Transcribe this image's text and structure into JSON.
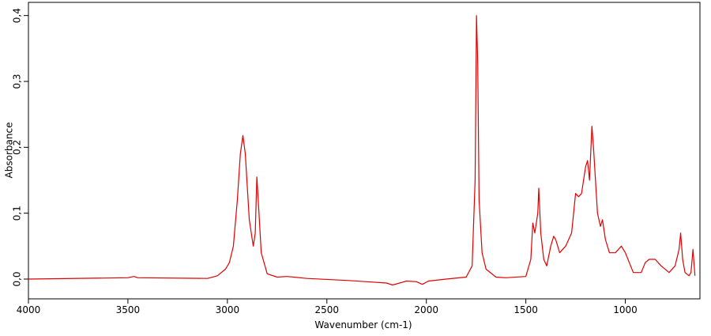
{
  "chart_data": {
    "type": "line",
    "x_label": "Wavenumber (cm-1)",
    "y_label": "Absorbance",
    "x": [
      4000,
      3500,
      3470,
      3450,
      3100,
      3050,
      3010,
      2990,
      2970,
      2950,
      2935,
      2922,
      2910,
      2890,
      2870,
      2860,
      2852,
      2845,
      2830,
      2800,
      2750,
      2700,
      2600,
      2400,
      2300,
      2200,
      2170,
      2100,
      2050,
      2020,
      1990,
      1900,
      1800,
      1770,
      1755,
      1748,
      1742,
      1735,
      1720,
      1700,
      1650,
      1600,
      1500,
      1475,
      1465,
      1455,
      1440,
      1435,
      1425,
      1410,
      1395,
      1375,
      1360,
      1350,
      1330,
      1300,
      1270,
      1250,
      1235,
      1220,
      1200,
      1190,
      1180,
      1168,
      1160,
      1140,
      1125,
      1115,
      1100,
      1080,
      1050,
      1020,
      1000,
      980,
      960,
      920,
      900,
      880,
      850,
      820,
      780,
      750,
      730,
      722,
      712,
      700,
      680,
      670,
      660,
      650
    ],
    "series": [
      {
        "color": "#e00000",
        "values": [
          0.0,
          0.002,
          0.004,
          0.002,
          0.001,
          0.005,
          0.015,
          0.025,
          0.05,
          0.12,
          0.19,
          0.218,
          0.19,
          0.09,
          0.05,
          0.07,
          0.155,
          0.12,
          0.04,
          0.008,
          0.003,
          0.004,
          0.001,
          -0.002,
          -0.004,
          -0.006,
          -0.009,
          -0.003,
          -0.004,
          -0.008,
          -0.003,
          0.0,
          0.003,
          0.02,
          0.15,
          0.4,
          0.33,
          0.12,
          0.04,
          0.015,
          0.003,
          0.002,
          0.004,
          0.03,
          0.085,
          0.07,
          0.1,
          0.138,
          0.07,
          0.03,
          0.02,
          0.05,
          0.065,
          0.06,
          0.04,
          0.05,
          0.07,
          0.13,
          0.125,
          0.13,
          0.17,
          0.18,
          0.15,
          0.232,
          0.2,
          0.1,
          0.08,
          0.09,
          0.06,
          0.04,
          0.04,
          0.05,
          0.04,
          0.025,
          0.01,
          0.01,
          0.025,
          0.03,
          0.03,
          0.02,
          0.01,
          0.02,
          0.045,
          0.07,
          0.03,
          0.01,
          0.005,
          0.01,
          0.045,
          0.005
        ]
      }
    ],
    "xlim": [
      4000,
      625
    ],
    "xticks": [
      4000,
      3500,
      3000,
      2500,
      2000,
      1500,
      1000
    ],
    "ylim": [
      -0.03,
      0.42
    ],
    "yticks": [
      {
        "value": 0.0,
        "label": "0,0"
      },
      {
        "value": 0.1,
        "label": "0,1"
      },
      {
        "value": 0.2,
        "label": "0,2"
      },
      {
        "value": 0.3,
        "label": "0,3"
      },
      {
        "value": 0.4,
        "label": "0,4"
      }
    ]
  }
}
